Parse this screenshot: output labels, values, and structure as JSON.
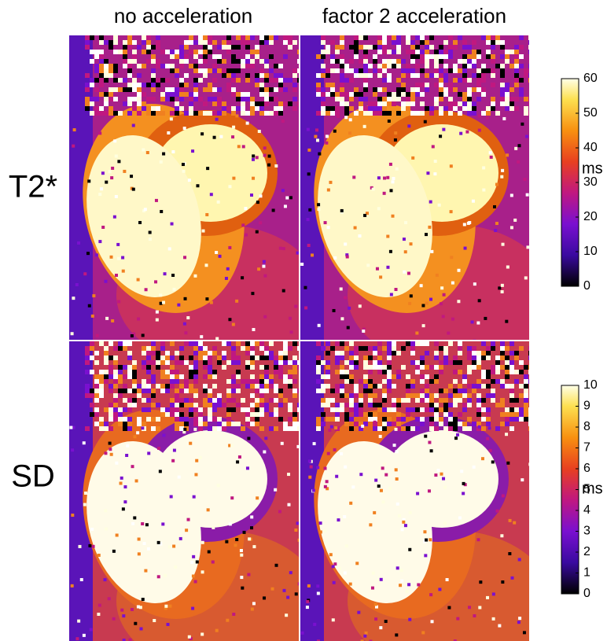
{
  "columns": [
    "no acceleration",
    "factor 2 acceleration"
  ],
  "rows": [
    "T2*",
    "SD"
  ],
  "colorbars": [
    {
      "unit": "ms",
      "lim": [
        0,
        60
      ],
      "ticks": [
        0,
        10,
        20,
        30,
        40,
        50,
        60
      ]
    },
    {
      "unit": "ms",
      "lim": [
        0,
        10
      ],
      "ticks": [
        0,
        1,
        2,
        3,
        4,
        5,
        6,
        7,
        8,
        9,
        10
      ]
    }
  ]
}
